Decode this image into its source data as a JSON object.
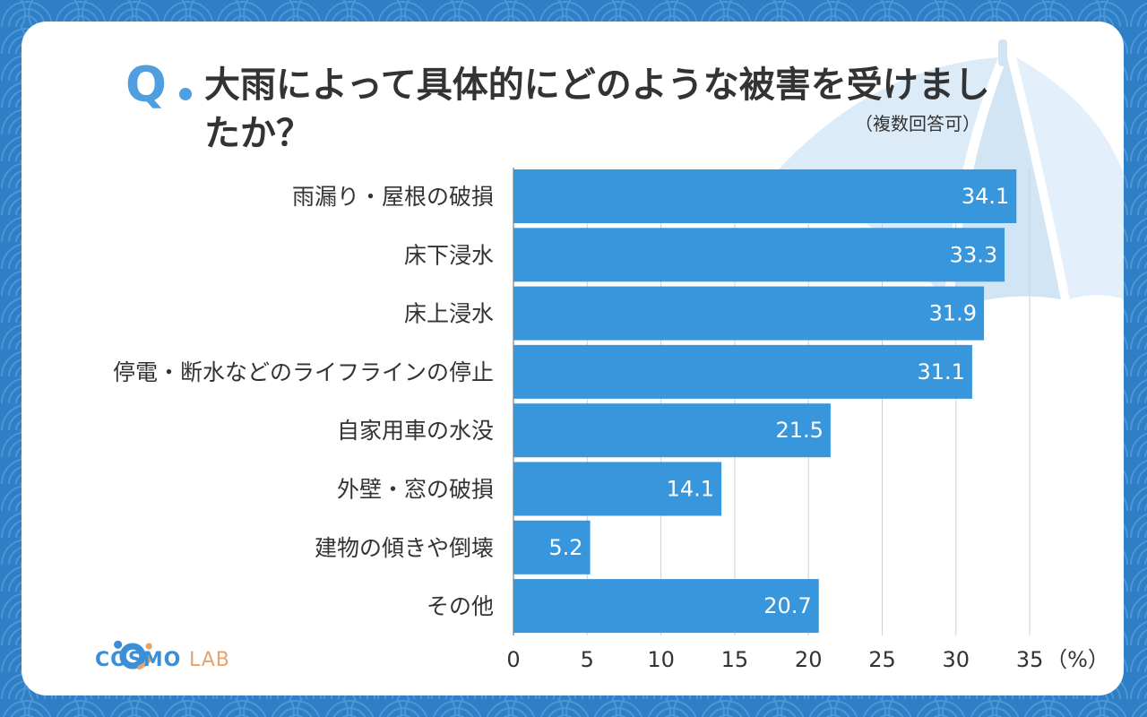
{
  "header": {
    "q_mark": "Q",
    "title": "大雨によって具体的にどのような被害を受けましたか？",
    "note": "（複数回答可）"
  },
  "colors": {
    "background": "#2f7fc6",
    "bar": "#3896dc",
    "accent": "#4f9ee0",
    "grid": "#d0d0d0"
  },
  "chart_data": {
    "type": "bar",
    "orientation": "horizontal",
    "categories": [
      "雨漏り・屋根の破損",
      "床下浸水",
      "床上浸水",
      "停電・断水などのライフラインの停止",
      "自家用車の水没",
      "外壁・窓の破損",
      "建物の傾きや倒壊",
      "その他"
    ],
    "values": [
      34.1,
      33.3,
      31.9,
      31.1,
      21.5,
      14.1,
      5.2,
      20.7
    ],
    "value_labels": [
      "34.1",
      "33.3",
      "31.9",
      "31.1",
      "21.5",
      "14.1",
      "5.2",
      "20.7"
    ],
    "xticks": [
      "0",
      "5",
      "10",
      "15",
      "20",
      "25",
      "30",
      "35"
    ],
    "xlim": [
      0,
      35
    ],
    "xunit": "（%）",
    "grid": true
  },
  "logo": {
    "name_part1": "COSMO",
    "name_part2": "LAB"
  }
}
